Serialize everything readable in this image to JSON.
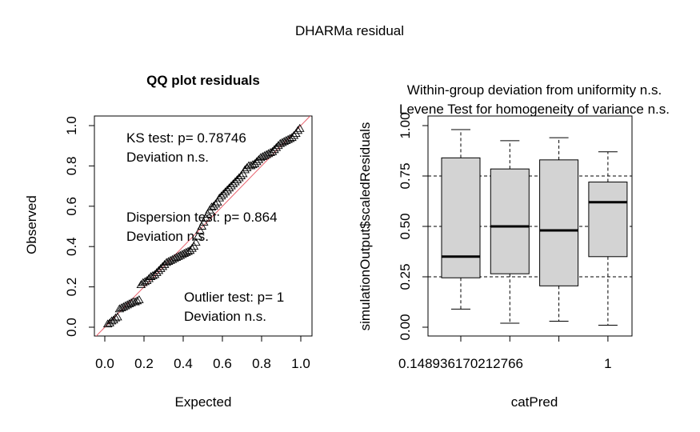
{
  "figure": {
    "title": "DHARMa residual"
  },
  "chart_data": [
    {
      "type": "scatter",
      "title": "QQ plot residuals",
      "xlabel": "Expected",
      "ylabel": "Observed",
      "xlim": [
        0,
        1
      ],
      "ylim": [
        0,
        1
      ],
      "xticks": [
        "0.0",
        "0.2",
        "0.4",
        "0.6",
        "0.8",
        "1.0"
      ],
      "yticks": [
        "0.0",
        "0.2",
        "0.4",
        "0.6",
        "0.8",
        "1.0"
      ],
      "grid": false,
      "reference_line": {
        "from": [
          0,
          0
        ],
        "to": [
          1,
          1
        ],
        "color": "#e8606c"
      },
      "marker_color": "#000000",
      "annotations": [
        {
          "line1": "KS test: p= 0.78746",
          "line2": "Deviation  n.s."
        },
        {
          "line1": "Dispersion test: p= 0.864",
          "line2": "Deviation  n.s."
        },
        {
          "line1": "Outlier test: p= 1",
          "line2": "Deviation  n.s."
        }
      ],
      "points": [
        [
          0.015,
          0.015
        ],
        [
          0.025,
          0.02
        ],
        [
          0.035,
          0.03
        ],
        [
          0.045,
          0.035
        ],
        [
          0.055,
          0.045
        ],
        [
          0.065,
          0.05
        ],
        [
          0.075,
          0.09
        ],
        [
          0.085,
          0.095
        ],
        [
          0.095,
          0.1
        ],
        [
          0.105,
          0.105
        ],
        [
          0.115,
          0.11
        ],
        [
          0.125,
          0.115
        ],
        [
          0.135,
          0.12
        ],
        [
          0.145,
          0.125
        ],
        [
          0.155,
          0.125
        ],
        [
          0.165,
          0.13
        ],
        [
          0.175,
          0.135
        ],
        [
          0.185,
          0.21
        ],
        [
          0.195,
          0.22
        ],
        [
          0.205,
          0.225
        ],
        [
          0.215,
          0.23
        ],
        [
          0.225,
          0.24
        ],
        [
          0.235,
          0.25
        ],
        [
          0.245,
          0.255
        ],
        [
          0.255,
          0.26
        ],
        [
          0.265,
          0.27
        ],
        [
          0.275,
          0.28
        ],
        [
          0.285,
          0.29
        ],
        [
          0.295,
          0.3
        ],
        [
          0.305,
          0.31
        ],
        [
          0.315,
          0.32
        ],
        [
          0.325,
          0.325
        ],
        [
          0.335,
          0.33
        ],
        [
          0.345,
          0.335
        ],
        [
          0.355,
          0.34
        ],
        [
          0.365,
          0.345
        ],
        [
          0.375,
          0.35
        ],
        [
          0.385,
          0.355
        ],
        [
          0.395,
          0.36
        ],
        [
          0.405,
          0.365
        ],
        [
          0.415,
          0.37
        ],
        [
          0.425,
          0.375
        ],
        [
          0.435,
          0.38
        ],
        [
          0.445,
          0.39
        ],
        [
          0.455,
          0.4
        ],
        [
          0.465,
          0.42
        ],
        [
          0.475,
          0.45
        ],
        [
          0.485,
          0.48
        ],
        [
          0.495,
          0.5
        ],
        [
          0.505,
          0.52
        ],
        [
          0.515,
          0.54
        ],
        [
          0.525,
          0.56
        ],
        [
          0.535,
          0.58
        ],
        [
          0.545,
          0.595
        ],
        [
          0.555,
          0.6
        ],
        [
          0.565,
          0.61
        ],
        [
          0.575,
          0.62
        ],
        [
          0.585,
          0.64
        ],
        [
          0.595,
          0.65
        ],
        [
          0.605,
          0.66
        ],
        [
          0.615,
          0.67
        ],
        [
          0.625,
          0.68
        ],
        [
          0.635,
          0.69
        ],
        [
          0.645,
          0.7
        ],
        [
          0.655,
          0.71
        ],
        [
          0.665,
          0.72
        ],
        [
          0.675,
          0.73
        ],
        [
          0.685,
          0.74
        ],
        [
          0.695,
          0.75
        ],
        [
          0.705,
          0.76
        ],
        [
          0.715,
          0.78
        ],
        [
          0.725,
          0.79
        ],
        [
          0.735,
          0.8
        ],
        [
          0.745,
          0.8
        ],
        [
          0.755,
          0.805
        ],
        [
          0.765,
          0.81
        ],
        [
          0.775,
          0.82
        ],
        [
          0.785,
          0.83
        ],
        [
          0.795,
          0.84
        ],
        [
          0.805,
          0.845
        ],
        [
          0.815,
          0.85
        ],
        [
          0.825,
          0.855
        ],
        [
          0.835,
          0.86
        ],
        [
          0.845,
          0.865
        ],
        [
          0.855,
          0.87
        ],
        [
          0.865,
          0.88
        ],
        [
          0.875,
          0.89
        ],
        [
          0.885,
          0.9
        ],
        [
          0.895,
          0.91
        ],
        [
          0.905,
          0.915
        ],
        [
          0.915,
          0.92
        ],
        [
          0.925,
          0.925
        ],
        [
          0.935,
          0.93
        ],
        [
          0.945,
          0.935
        ],
        [
          0.955,
          0.94
        ],
        [
          0.965,
          0.95
        ],
        [
          0.975,
          0.96
        ],
        [
          0.985,
          0.975
        ],
        [
          0.995,
          0.985
        ]
      ]
    },
    {
      "type": "boxplot",
      "title": "Within-group deviation from uniformity n.s.",
      "subtitle": "Levene Test for homogeneity of variance n.s.",
      "xlabel": "catPred",
      "ylabel": "simulationOutput$scaledResiduals",
      "ylim": [
        0,
        1
      ],
      "yticks": [
        "0.00",
        "0.25",
        "0.50",
        "0.75",
        "1.00"
      ],
      "xtick_labels": [
        {
          "group": 1,
          "label": "0.148936170212766"
        },
        {
          "group": 4,
          "label": "1"
        }
      ],
      "reference_lines": [
        0.25,
        0.5,
        0.75
      ],
      "box_fill": "#d3d3d3",
      "boxes": [
        {
          "min": 0.09,
          "q1": 0.245,
          "median": 0.35,
          "q3": 0.84,
          "max": 0.98
        },
        {
          "min": 0.02,
          "q1": 0.265,
          "median": 0.5,
          "q3": 0.785,
          "max": 0.925
        },
        {
          "min": 0.03,
          "q1": 0.205,
          "median": 0.48,
          "q3": 0.83,
          "max": 0.94
        },
        {
          "min": 0.01,
          "q1": 0.35,
          "median": 0.62,
          "q3": 0.72,
          "max": 0.87
        }
      ]
    }
  ]
}
